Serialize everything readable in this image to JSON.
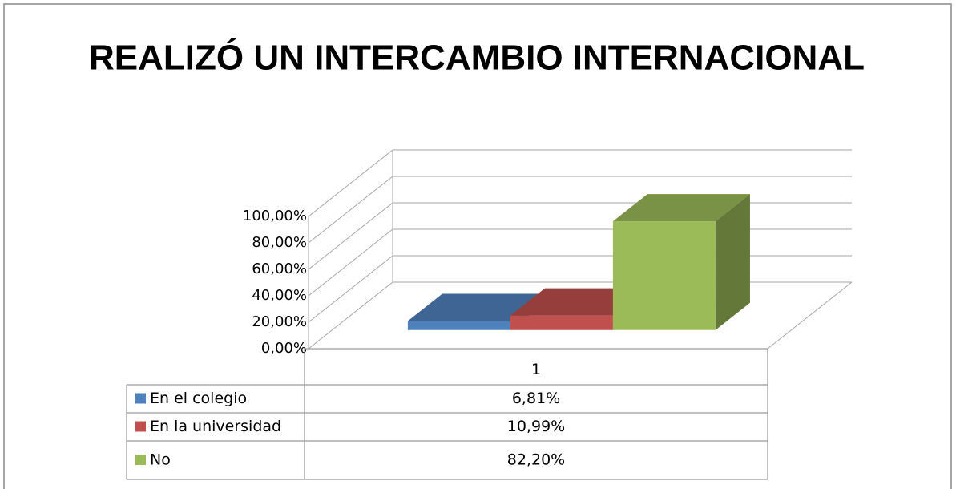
{
  "chart_data": {
    "type": "bar3d",
    "title": "REALIZÓ  UN INTERCAMBIO INTERNACIONAL",
    "categories": [
      "1"
    ],
    "series": [
      {
        "name": "En el colegio",
        "color": "#4f81bd",
        "values": [
          6.81
        ],
        "value_labels": [
          "6,81%"
        ]
      },
      {
        "name": "En la universidad",
        "color": "#c0504d",
        "values": [
          10.99
        ],
        "value_labels": [
          "10,99%"
        ]
      },
      {
        "name": "No",
        "color": "#9bbb59",
        "values": [
          82.2
        ],
        "value_labels": [
          "82,20%"
        ]
      }
    ],
    "ylim": [
      0,
      100
    ],
    "yticks": [
      {
        "value": 0,
        "label": "0,00%"
      },
      {
        "value": 20,
        "label": "20,00%"
      },
      {
        "value": 40,
        "label": "40,00%"
      },
      {
        "value": 60,
        "label": "60,00%"
      },
      {
        "value": 80,
        "label": "80,00%"
      },
      {
        "value": 100,
        "label": "100,00%"
      }
    ],
    "grid": true
  }
}
